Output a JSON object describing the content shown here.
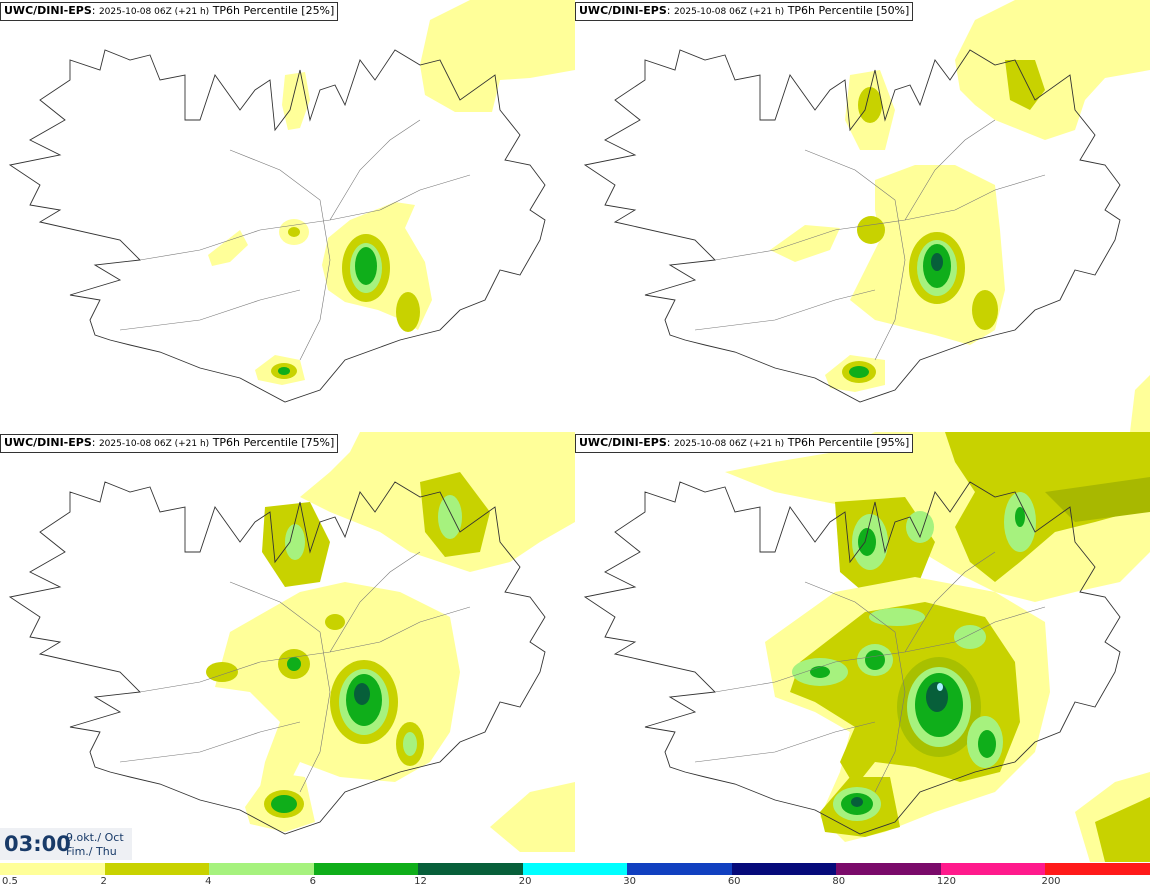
{
  "panels": [
    {
      "model": "UWC/DINI-EPS",
      "init": "2025-10-08 06Z (+21 h)",
      "product": "TP6h Percentile [25%]"
    },
    {
      "model": "UWC/DINI-EPS",
      "init": "2025-10-08 06Z (+21 h)",
      "product": "TP6h Percentile [50%]"
    },
    {
      "model": "UWC/DINI-EPS",
      "init": "2025-10-08 06Z (+21 h)",
      "product": "TP6h Percentile [75%]"
    },
    {
      "model": "UWC/DINI-EPS",
      "init": "2025-10-08 06Z (+21 h)",
      "product": "TP6h Percentile [95%]"
    }
  ],
  "valid": {
    "time": "03:00",
    "date": "9.okt./ Oct",
    "day": "Fim./ Thu"
  },
  "colorbar": {
    "colors": [
      "#ffff99",
      "#c8d200",
      "#a6f27e",
      "#0fae1a",
      "#075f3a",
      "#00ffff",
      "#1140c0",
      "#060a7a",
      "#7a0a6a",
      "#ff1a8c",
      "#ff1a1a"
    ],
    "ticks": [
      "0.5",
      "2",
      "4",
      "6",
      "12",
      "20",
      "30",
      "60",
      "80",
      "120",
      "200"
    ]
  }
}
